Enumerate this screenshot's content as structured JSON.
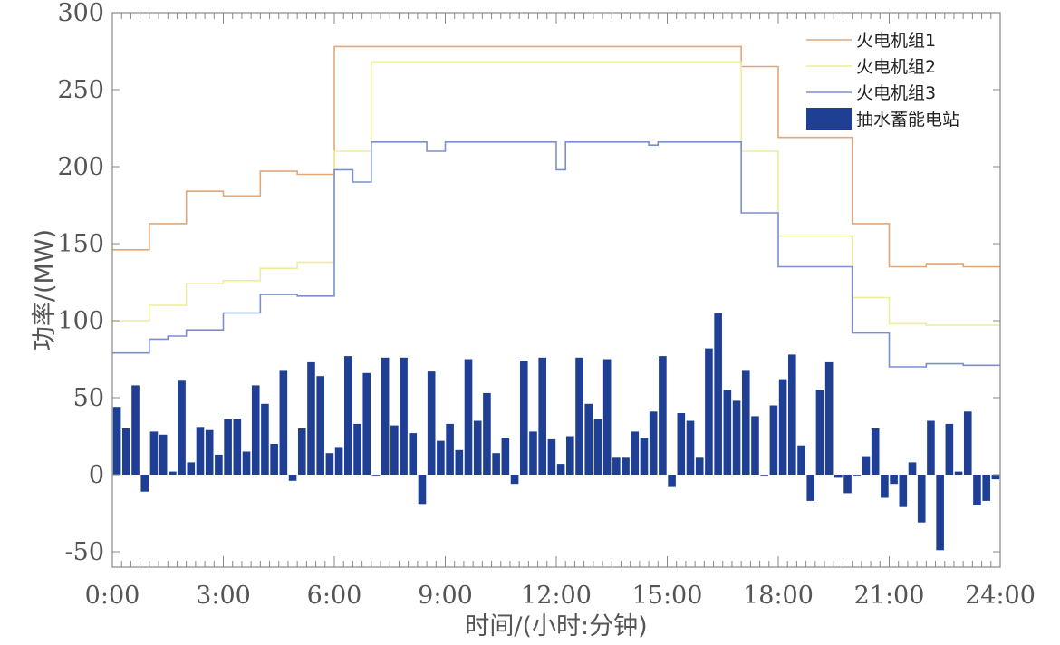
{
  "chart_data": {
    "type": "bar",
    "title": "",
    "xlabel": "时间/(小时:分钟)",
    "ylabel": "功率/(MW)",
    "xlim": [
      0,
      24
    ],
    "ylim": [
      -60,
      300
    ],
    "x_ticks": [
      "0:00",
      "3:00",
      "6:00",
      "9:00",
      "12:00",
      "15:00",
      "18:00",
      "21:00",
      "24:00"
    ],
    "y_ticks": [
      "-50",
      "0",
      "50",
      "100",
      "150",
      "200",
      "250",
      "300"
    ],
    "grid": false,
    "legend_position": "top-right",
    "interval_hours": 0.25,
    "colors": {
      "thermal1": "#e0a878",
      "thermal2": "#eeee99",
      "thermal3": "#7b8fd0",
      "pumped_storage": "#1f3f95"
    },
    "series": [
      {
        "name": "火电机组1",
        "type": "step",
        "steps": [
          [
            0,
            146
          ],
          [
            1,
            163
          ],
          [
            2,
            184
          ],
          [
            3,
            181
          ],
          [
            4,
            197
          ],
          [
            5,
            195
          ],
          [
            6,
            278
          ],
          [
            17,
            265
          ],
          [
            18,
            219
          ],
          [
            20,
            163
          ],
          [
            21,
            135
          ],
          [
            22,
            137
          ],
          [
            23,
            135
          ],
          [
            24,
            135
          ]
        ]
      },
      {
        "name": "火电机组2",
        "type": "step",
        "steps": [
          [
            0,
            100
          ],
          [
            1,
            110
          ],
          [
            2,
            124
          ],
          [
            3,
            126
          ],
          [
            4,
            134
          ],
          [
            5,
            138
          ],
          [
            6,
            210
          ],
          [
            7,
            268
          ],
          [
            17,
            210
          ],
          [
            18,
            155
          ],
          [
            20,
            115
          ],
          [
            21,
            98
          ],
          [
            22,
            97
          ],
          [
            23,
            97
          ],
          [
            24,
            97
          ]
        ]
      },
      {
        "name": "火电机组3",
        "type": "step",
        "steps": [
          [
            0,
            79
          ],
          [
            1,
            88
          ],
          [
            1.5,
            90
          ],
          [
            2,
            94
          ],
          [
            3,
            105
          ],
          [
            4,
            117
          ],
          [
            5,
            116
          ],
          [
            6,
            198
          ],
          [
            6.5,
            190
          ],
          [
            7,
            216
          ],
          [
            8.5,
            210
          ],
          [
            9,
            216
          ],
          [
            12,
            198
          ],
          [
            12.25,
            216
          ],
          [
            14.5,
            214
          ],
          [
            14.75,
            216
          ],
          [
            17,
            170
          ],
          [
            18,
            135
          ],
          [
            20,
            92
          ],
          [
            21,
            70
          ],
          [
            22,
            72
          ],
          [
            23,
            71
          ],
          [
            24,
            71
          ]
        ]
      },
      {
        "name": "抽水蓄能电站",
        "type": "bar",
        "values": [
          44,
          30,
          58,
          -11,
          28,
          26,
          2,
          61,
          8,
          31,
          29,
          13,
          36,
          36,
          15,
          58,
          46,
          20,
          68,
          -4,
          30,
          73,
          64,
          14,
          18,
          77,
          33,
          66,
          0,
          76,
          32,
          76,
          27,
          -19,
          67,
          22,
          33,
          16,
          75,
          35,
          53,
          14,
          24,
          -6,
          74,
          28,
          76,
          23,
          7,
          25,
          76,
          46,
          36,
          75,
          11,
          11,
          28,
          24,
          41,
          77,
          -8,
          40,
          35,
          11,
          82,
          105,
          55,
          48,
          68,
          38,
          0,
          45,
          62,
          78,
          19,
          -17,
          55,
          73,
          -2,
          -12,
          0,
          12,
          30,
          -15,
          -6,
          -21,
          8,
          -31,
          35,
          -49,
          33,
          2,
          41,
          -20,
          -17,
          -3
        ]
      }
    ]
  }
}
